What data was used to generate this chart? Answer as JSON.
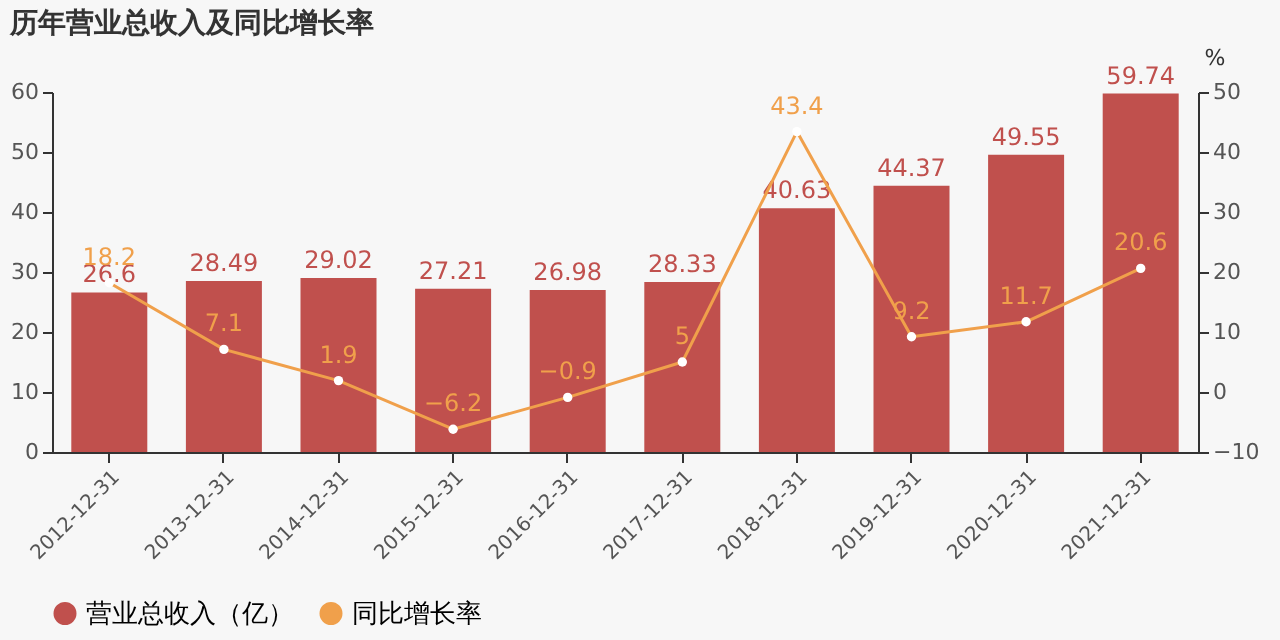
{
  "chart_data": {
    "type": "bar",
    "title": "历年营业总收入及同比增长率",
    "y2label": "%",
    "categories": [
      "2012-12-31",
      "2013-12-31",
      "2014-12-31",
      "2015-12-31",
      "2016-12-31",
      "2017-12-31",
      "2018-12-31",
      "2019-12-31",
      "2020-12-31",
      "2021-12-31"
    ],
    "series": [
      {
        "name": "营业总收入（亿）",
        "color": "#c0504d",
        "values": [
          26.6,
          28.49,
          29.02,
          27.21,
          26.98,
          28.33,
          40.63,
          44.37,
          49.55,
          59.74
        ]
      },
      {
        "name": "同比增长率",
        "type": "line",
        "axis": "y2",
        "color": "#f0a04b",
        "marker": "circle",
        "values": [
          18.2,
          7.1,
          1.9,
          -6.2,
          -0.9,
          5,
          43.4,
          9.2,
          11.7,
          20.6
        ]
      }
    ],
    "ylim": [
      0,
      60
    ],
    "yticks": [
      0,
      10,
      20,
      30,
      40,
      50,
      60
    ],
    "y2lim": [
      -10,
      50
    ],
    "y2ticks": [
      -10,
      0,
      10,
      20,
      30,
      40,
      50
    ],
    "data_labels": true,
    "grid": false,
    "legend": "bottom"
  }
}
